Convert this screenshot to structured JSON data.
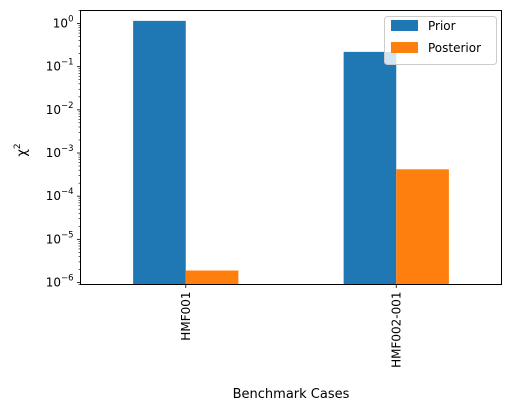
{
  "chart_data": {
    "type": "bar",
    "title": "",
    "xlabel": "Benchmark Cases",
    "ylabel": "χ",
    "ylabel_superscript": "2",
    "yscale": "log",
    "ylim": [
      9e-07,
      2.0
    ],
    "categories": [
      "HMF001",
      "HMF002-001"
    ],
    "series": [
      {
        "name": "Prior",
        "values": [
          1.15,
          0.22
        ],
        "color": "#1f77b4"
      },
      {
        "name": "Posterior",
        "values": [
          1.9e-06,
          0.00042
        ],
        "color": "#ff7f0e"
      }
    ],
    "yticks": [
      {
        "base": "10",
        "exp": "0",
        "value": 1
      },
      {
        "base": "10",
        "exp": "−1",
        "value": 0.1
      },
      {
        "base": "10",
        "exp": "−2",
        "value": 0.01
      },
      {
        "base": "10",
        "exp": "−3",
        "value": 0.001
      },
      {
        "base": "10",
        "exp": "−4",
        "value": 0.0001
      },
      {
        "base": "10",
        "exp": "−5",
        "value": 1e-05
      },
      {
        "base": "10",
        "exp": "−6",
        "value": 1e-06
      }
    ],
    "legend": "top-right",
    "grid": false
  }
}
